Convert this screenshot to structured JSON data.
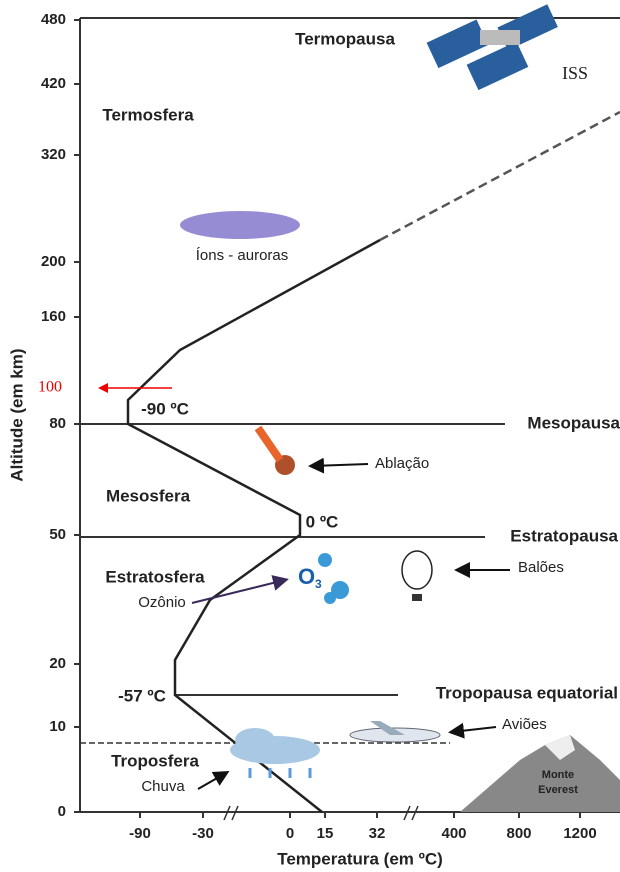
{
  "y_axis": {
    "label": "Altitude (em km)",
    "ticks": [
      "480",
      "420",
      "320",
      "200",
      "160",
      "80",
      "50",
      "20",
      "10",
      "0"
    ]
  },
  "x_axis": {
    "label": "Temperatura (em ºC)",
    "ticks": [
      "-90",
      "-30",
      "0",
      "15",
      "32",
      "400",
      "800",
      "1200"
    ]
  },
  "annotation": {
    "value": "100"
  },
  "layers": {
    "termopausa": "Termopausa",
    "termosfera": "Termosfera",
    "mesopausa": "Mesopausa",
    "mesosfera": "Mesosfera",
    "estratopausa": "Estratopausa",
    "estratosfera": "Estratosfera",
    "tropopausa": "Tropopausa equatorial",
    "troposfera": "Troposfera"
  },
  "temperatures": {
    "mesopause": "-90 ºC",
    "stratopause": "0 ºC",
    "tropopause": "-57 ºC"
  },
  "objects": {
    "iss": "ISS",
    "auroras": "Íons - auroras",
    "ablation": "Ablação",
    "ozone": "Ozônio",
    "ozone_formula": "O",
    "ozone_sub": "3",
    "balloons": "Balões",
    "planes": "Aviões",
    "rain": "Chuva",
    "everest_1": "Monte",
    "everest_2": "Everest"
  }
}
